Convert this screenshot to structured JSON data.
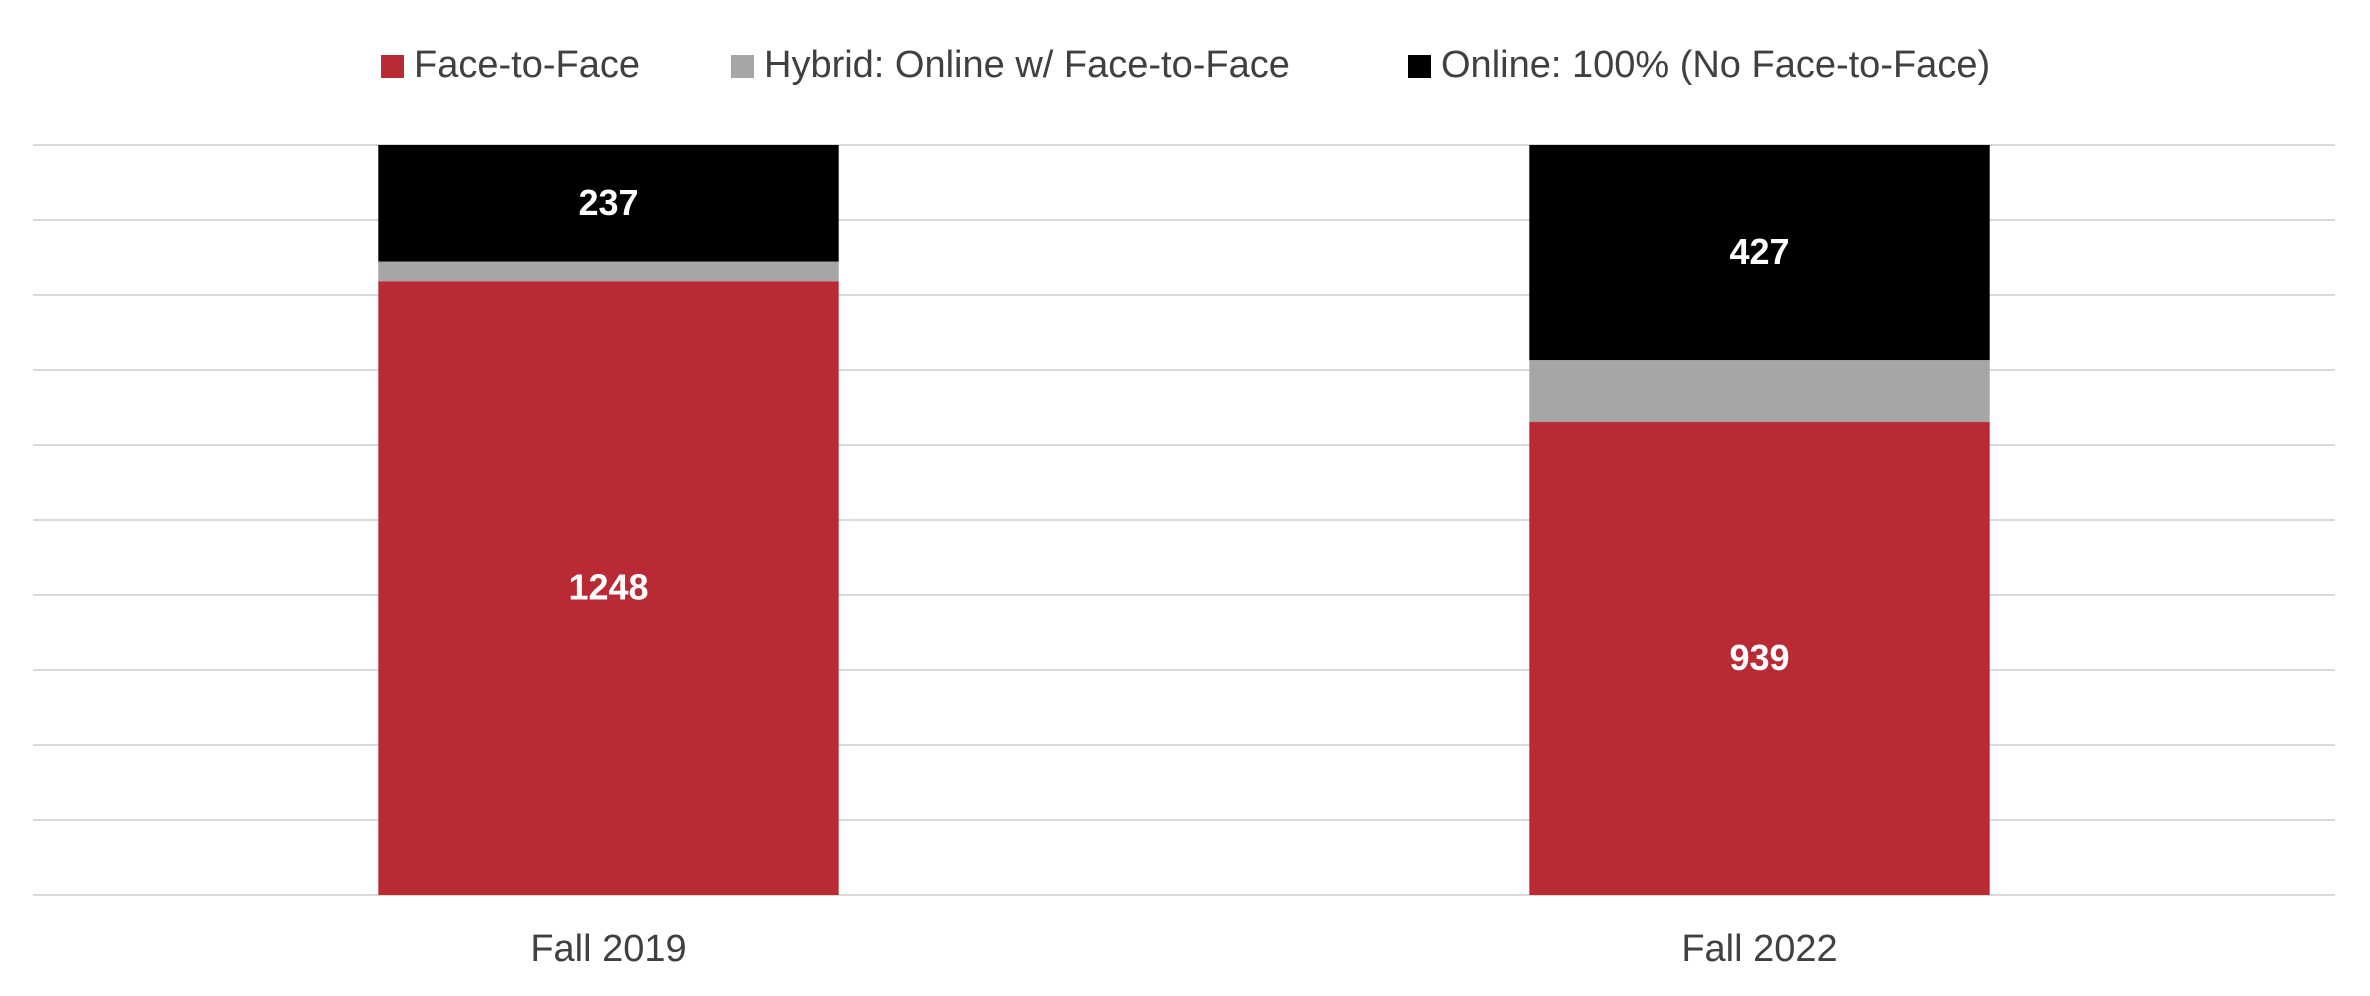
{
  "chart_data": {
    "type": "bar",
    "stacking": "percent",
    "categories": [
      "Fall 2019",
      "Fall 2022"
    ],
    "series": [
      {
        "name": "Face-to-Face",
        "color": "#b92a35",
        "values": [
          1248,
          939
        ],
        "labels": true
      },
      {
        "name": "Hybrid: Online w/ Face-to-Face",
        "color": "#a6a6a6",
        "values": [
          40,
          123
        ],
        "labels": false
      },
      {
        "name": "Online: 100% (No Face-to-Face)",
        "color": "#000000",
        "values": [
          237,
          427
        ],
        "labels": true
      }
    ],
    "ylim": [
      0,
      100
    ],
    "yticks": [
      0,
      10,
      20,
      30,
      40,
      50,
      60,
      70,
      80,
      90,
      100
    ],
    "grid": true,
    "legend": "top"
  }
}
